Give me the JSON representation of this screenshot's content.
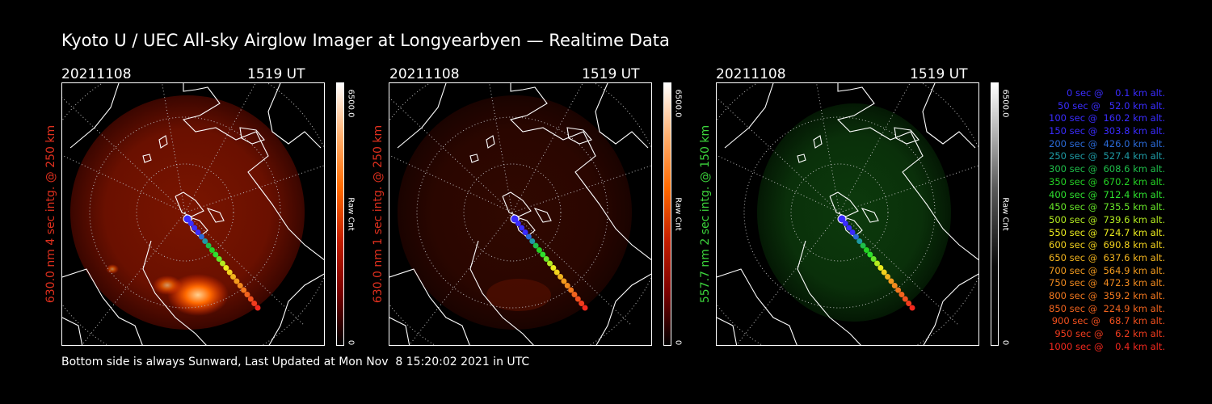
{
  "title": "Kyoto U / UEC All-sky Airglow Imager at Longyearbyen — Realtime Data",
  "footer": "Bottom side is always Sunward, Last Updated at Mon Nov  8 15:20:02 2021 in UTC",
  "panels": [
    {
      "date": "20211108",
      "time": "1519 UT",
      "ylabel": "630.0 nm 4 sec intg. @ 250 km",
      "ycolor": "#e0301e",
      "cbar_max": "6500.0",
      "cbar_label": "Raw Cnt",
      "cbar_min": "0",
      "glow": "red-bright"
    },
    {
      "date": "20211108",
      "time": "1519 UT",
      "ylabel": "630.0 nm 1 sec intg. @ 250 km",
      "ycolor": "#e0301e",
      "cbar_max": "6500.0",
      "cbar_label": "Raw Cnt",
      "cbar_min": "0",
      "glow": "red-dim"
    },
    {
      "date": "20211108",
      "time": "1519 UT",
      "ylabel": "557.7 nm 2 sec intg. @ 150 km",
      "ycolor": "#3cd43c",
      "cbar_max": "6500.0",
      "cbar_label": "Raw Cnt",
      "cbar_min": "0",
      "glow": "green"
    }
  ],
  "legend": [
    {
      "text": "0 sec @    0.1 km alt.",
      "color": "#3a2cff"
    },
    {
      "text": "50 sec @   52.0 km alt.",
      "color": "#3a2cff"
    },
    {
      "text": "100 sec @  160.2 km alt.",
      "color": "#3a2cff"
    },
    {
      "text": "150 sec @  303.8 km alt.",
      "color": "#3a2cff"
    },
    {
      "text": "200 sec @  426.0 km alt.",
      "color": "#2a6ad8"
    },
    {
      "text": "250 sec @  527.4 km alt.",
      "color": "#1e9aa4"
    },
    {
      "text": "300 sec @  608.6 km alt.",
      "color": "#1fbf4a"
    },
    {
      "text": "350 sec @  670.2 km alt.",
      "color": "#24d224"
    },
    {
      "text": "400 sec @  712.4 km alt.",
      "color": "#2ee02e"
    },
    {
      "text": "450 sec @  735.5 km alt.",
      "color": "#66e628"
    },
    {
      "text": "500 sec @  739.6 km alt.",
      "color": "#b4ec20"
    },
    {
      "text": "550 sec @  724.7 km alt.",
      "color": "#ecec1e"
    },
    {
      "text": "600 sec @  690.8 km alt.",
      "color": "#f2d21e"
    },
    {
      "text": "650 sec @  637.6 km alt.",
      "color": "#f2b41e"
    },
    {
      "text": "700 sec @  564.9 km alt.",
      "color": "#f29a1e"
    },
    {
      "text": "750 sec @  472.3 km alt.",
      "color": "#f28a1e"
    },
    {
      "text": "800 sec @  359.2 km alt.",
      "color": "#f2781e"
    },
    {
      "text": "850 sec @  224.9 km alt.",
      "color": "#f2641e"
    },
    {
      "text": "900 sec @   68.7 km alt.",
      "color": "#f2501e"
    },
    {
      "text": "950 sec @    6.2 km alt.",
      "color": "#f23c1e"
    },
    {
      "text": "1000 sec @    0.4 km alt.",
      "color": "#f2281e"
    }
  ]
}
